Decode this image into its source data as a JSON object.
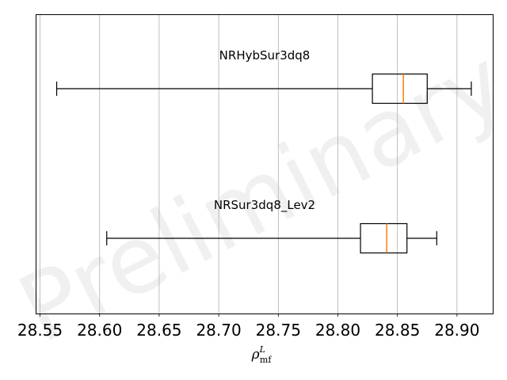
{
  "chart_data": {
    "type": "boxplot",
    "orientation": "horizontal",
    "watermark": "Preliminary",
    "xlabel": "ρ",
    "xlabel_sub": "mf",
    "xlabel_sup": "L",
    "xlim": [
      28.547,
      28.93
    ],
    "xticks": [
      28.55,
      28.6,
      28.65,
      28.7,
      28.75,
      28.8,
      28.85,
      28.9
    ],
    "xtick_labels": [
      "28.55",
      "28.60",
      "28.65",
      "28.70",
      "28.75",
      "28.80",
      "28.85",
      "28.90"
    ],
    "grid": "vertical",
    "colors": {
      "box": "#000000",
      "median": "#ff7f0e",
      "grid": "#b0b0b0"
    },
    "series": [
      {
        "name": "NRHybSur3dq8",
        "whisker_low": 28.564,
        "q1": 28.829,
        "median": 28.855,
        "q3": 28.875,
        "whisker_high": 28.912
      },
      {
        "name": "NRSur3dq8_Lev2",
        "whisker_low": 28.606,
        "q1": 28.819,
        "median": 28.841,
        "q3": 28.858,
        "whisker_high": 28.883
      }
    ]
  }
}
